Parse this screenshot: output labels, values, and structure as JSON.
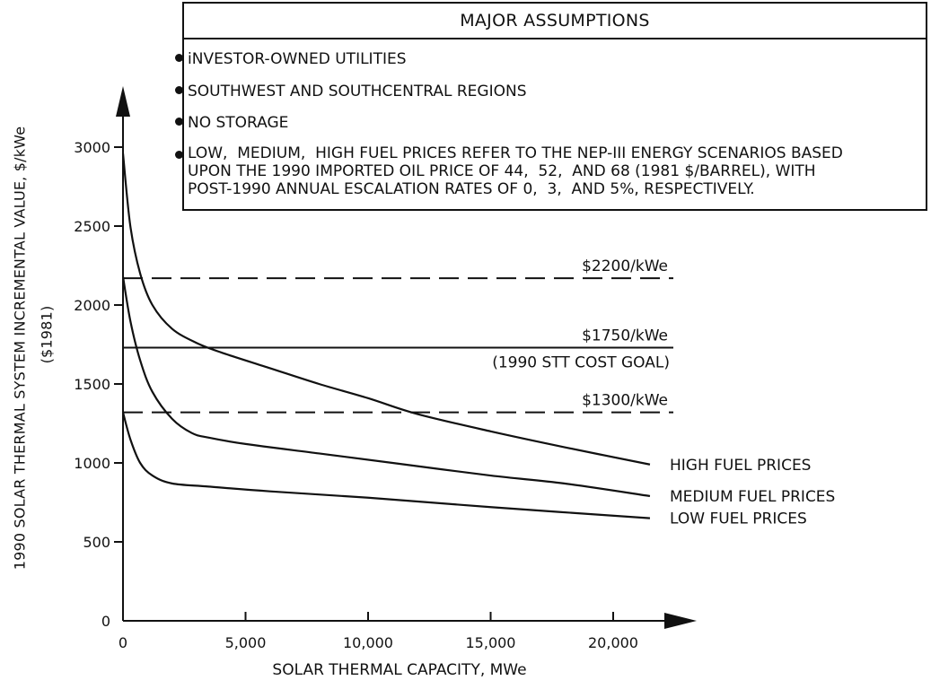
{
  "chart_data": {
    "type": "line",
    "xlabel": "SOLAR THERMAL CAPACITY,  MWe",
    "ylabel": "1990 SOLAR THERMAL SYSTEM INCREMENTAL VALUE,  $/kWe",
    "ylabel2": "($1981)",
    "xlim": [
      0,
      22000
    ],
    "ylim": [
      0,
      3400
    ],
    "xticks": [
      0,
      5000,
      10000,
      15000,
      20000
    ],
    "xtick_labels": [
      "0",
      "5,000",
      "10,000",
      "15,000",
      "20,000"
    ],
    "yticks": [
      0,
      500,
      1000,
      1500,
      2000,
      2500,
      3000
    ],
    "ytick_labels": [
      "0",
      "500",
      "1000",
      "1500",
      "2000",
      "2500",
      "3000"
    ],
    "series": [
      {
        "name": "HIGH FUEL PRICES",
        "x": [
          0,
          300,
          700,
          1200,
          2000,
          3000,
          4000,
          6000,
          8000,
          10000,
          12000,
          15000,
          18000,
          21500
        ],
        "y": [
          2960,
          2500,
          2200,
          2000,
          1850,
          1760,
          1700,
          1600,
          1500,
          1410,
          1310,
          1200,
          1100,
          990
        ]
      },
      {
        "name": "MEDIUM FUEL PRICES",
        "x": [
          0,
          300,
          700,
          1200,
          2000,
          2800,
          3500,
          5000,
          8000,
          11000,
          15000,
          18000,
          21500
        ],
        "y": [
          2180,
          1900,
          1650,
          1450,
          1280,
          1190,
          1160,
          1120,
          1060,
          1000,
          920,
          870,
          790
        ]
      },
      {
        "name": "LOW FUEL PRICES",
        "x": [
          0,
          300,
          700,
          1200,
          2000,
          3500,
          6000,
          10000,
          15000,
          21500
        ],
        "y": [
          1320,
          1150,
          1000,
          920,
          870,
          850,
          820,
          780,
          720,
          650
        ]
      }
    ],
    "reference_lines": [
      {
        "label": "$2200/kWe",
        "value": 2170,
        "style": "dashed"
      },
      {
        "label": "$1750/kWe",
        "sublabel": "(1990 STT COST GOAL)",
        "value": 1730,
        "style": "solid"
      },
      {
        "label": "$1300/kWe",
        "value": 1320,
        "style": "dashed"
      }
    ]
  },
  "assumptions": {
    "title": "MAJOR ASSUMPTIONS",
    "items": [
      "iNVESTOR-OWNED UTILITIES",
      "SOUTHWEST AND SOUTHCENTRAL REGIONS",
      "NO STORAGE",
      "LOW,  MEDIUM,  HIGH FUEL PRICES REFER TO THE NEP-III ENERGY SCENARIOS BASED\nUPON THE 1990 IMPORTED OIL PRICE OF 44,  52,  AND 68 (1981 $/BARREL), WITH\nPOST-1990 ANNUAL ESCALATION RATES OF 0,  3,  AND 5%, RESPECTIVELY."
    ]
  }
}
